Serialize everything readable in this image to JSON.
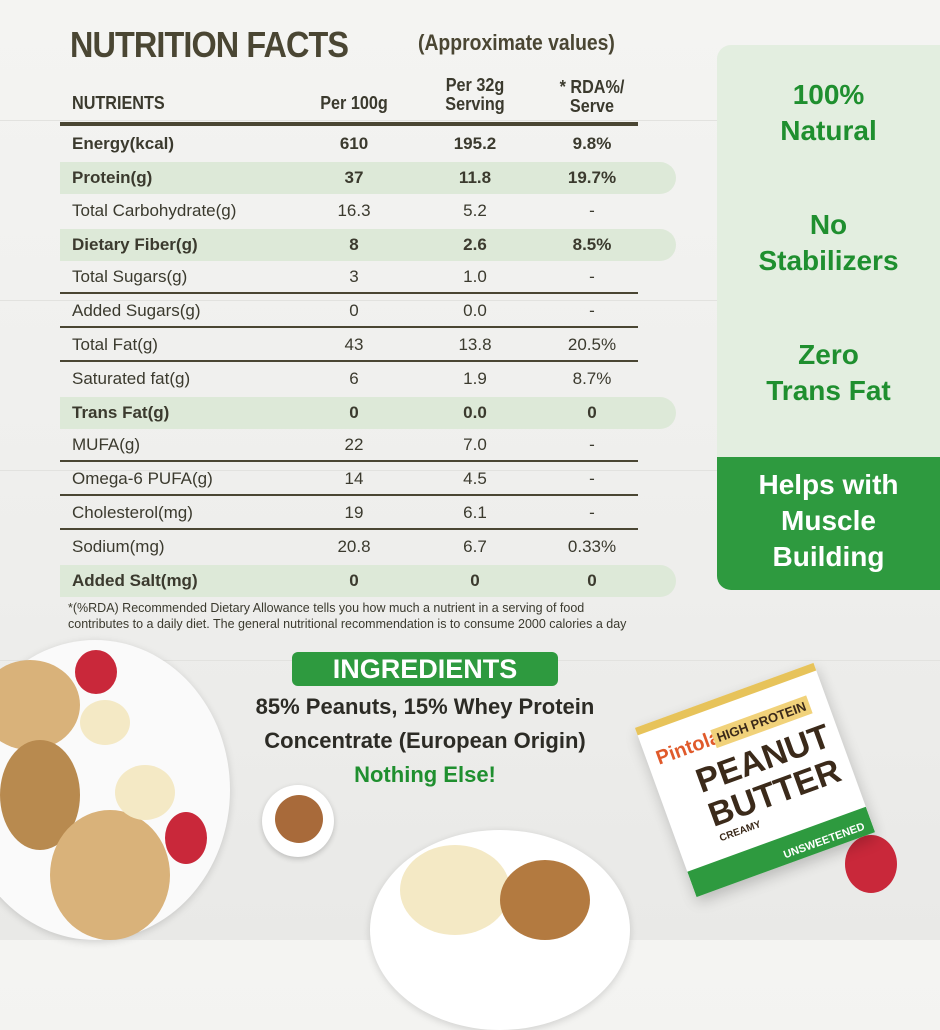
{
  "title": "NUTRITION FACTS",
  "subtitle": "(Approximate values)",
  "headers": {
    "nutrients": "NUTRIENTS",
    "per100": "Per 100g",
    "serving_l1": "Per 32g",
    "serving_l2": "Serving",
    "rda_l1": "* RDA%/",
    "rda_l2": "Serve"
  },
  "rows": [
    {
      "name": "Energy(kcal)",
      "per100": "610",
      "serving": "195.2",
      "rda": "9.8%",
      "bold": true,
      "highlight": false
    },
    {
      "name": "Protein(g)",
      "per100": "37",
      "serving": "11.8",
      "rda": "19.7%",
      "bold": true,
      "highlight": true
    },
    {
      "name": "Total Carbohydrate(g)",
      "per100": "16.3",
      "serving": "5.2",
      "rda": "-",
      "bold": false,
      "highlight": false
    },
    {
      "name": "Dietary Fiber(g)",
      "per100": "8",
      "serving": "2.6",
      "rda": "8.5%",
      "bold": true,
      "highlight": true
    },
    {
      "name": "Total Sugars(g)",
      "per100": "3",
      "serving": "1.0",
      "rda": "-",
      "bold": false,
      "highlight": false
    },
    {
      "name": "Added Sugars(g)",
      "per100": "0",
      "serving": "0.0",
      "rda": "-",
      "bold": false,
      "highlight": false
    },
    {
      "name": "Total Fat(g)",
      "per100": "43",
      "serving": "13.8",
      "rda": "20.5%",
      "bold": false,
      "highlight": false
    },
    {
      "name": "Saturated fat(g)",
      "per100": "6",
      "serving": "1.9",
      "rda": "8.7%",
      "bold": false,
      "highlight": false
    },
    {
      "name": "Trans Fat(g)",
      "per100": "0",
      "serving": "0.0",
      "rda": "0",
      "bold": true,
      "highlight": true
    },
    {
      "name": "MUFA(g)",
      "per100": "22",
      "serving": "7.0",
      "rda": "-",
      "bold": false,
      "highlight": false
    },
    {
      "name": "Omega-6 PUFA(g)",
      "per100": "14",
      "serving": "4.5",
      "rda": "-",
      "bold": false,
      "highlight": false
    },
    {
      "name": "Cholesterol(mg)",
      "per100": "19",
      "serving": "6.1",
      "rda": "-",
      "bold": false,
      "highlight": false
    },
    {
      "name": "Sodium(mg)",
      "per100": "20.8",
      "serving": "6.7",
      "rda": "0.33%",
      "bold": false,
      "highlight": false
    },
    {
      "name": "Added Salt(mg)",
      "per100": "0",
      "serving": "0",
      "rda": "0",
      "bold": true,
      "highlight": true
    }
  ],
  "claims": [
    {
      "l1": "100%",
      "l2": "Natural"
    },
    {
      "l1": "No",
      "l2": "Stabilizers"
    },
    {
      "l1": "Zero",
      "l2": "Trans Fat"
    },
    {
      "l1": "Helps with",
      "l2": "Muscle",
      "l3": "Building"
    }
  ],
  "footnote": {
    "l1": "*(%RDA) Recommended Dietary Allowance tells you how much a nutrient in a serving of food",
    "l2": "contributes to a daily diet. The general nutritional recommendation is to consume 2000 calories a day"
  },
  "ingredients": {
    "label": "INGREDIENTS",
    "l1": "85% Peanuts, 15% Whey Protein",
    "l2": "Concentrate (European Origin)",
    "tagline": "Nothing Else!"
  },
  "product": {
    "brand": "Pintola",
    "line": "HIGH PROTEIN",
    "name1": "PEANUT",
    "name2": "BUTTER",
    "variant": "CREAMY",
    "tag": "UNSWEETENED"
  },
  "colors": {
    "green": "#2e9a3f",
    "text_green": "#1f8f2f",
    "highlight": "#dde9d8",
    "panel": "#e3eee0",
    "heading": "#4a4633"
  }
}
